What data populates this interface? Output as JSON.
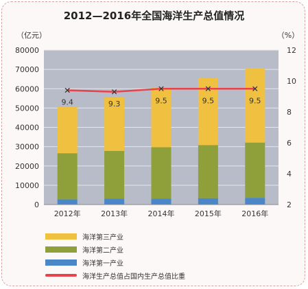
{
  "chart_data": {
    "type": "bar",
    "title": "2012—2016年全国海洋生产总值情况",
    "left_unit": "（亿元）",
    "right_unit": "（%）",
    "categories": [
      "2012年",
      "2013年",
      "2014年",
      "2015年",
      "2016年"
    ],
    "y_left": {
      "min": 0,
      "max": 80000,
      "ticks": [
        0,
        10000,
        20000,
        30000,
        40000,
        50000,
        60000,
        70000,
        80000
      ]
    },
    "y_right": {
      "min": 2,
      "max": 12,
      "ticks": [
        2,
        4,
        6,
        8,
        10,
        12
      ]
    },
    "stacked": true,
    "series": [
      {
        "name": "海洋第一产业",
        "type": "bar",
        "color": "#4a86c8",
        "values": [
          2700,
          3000,
          3100,
          3300,
          3500
        ]
      },
      {
        "name": "海洋第二产业",
        "type": "bar",
        "color": "#8fa03a",
        "values": [
          23900,
          24800,
          26600,
          27500,
          28600
        ]
      },
      {
        "name": "海洋第三产业",
        "type": "bar",
        "color": "#f0c040",
        "values": [
          24000,
          27700,
          30900,
          34700,
          38600
        ]
      },
      {
        "name": "海洋生产总值占国内生产总值比重",
        "type": "line",
        "color": "#e8424a",
        "axis": "right",
        "values": [
          9.4,
          9.3,
          9.5,
          9.5,
          9.5
        ]
      }
    ],
    "data_labels": [
      "9.4",
      "9.3",
      "9.5",
      "9.5",
      "9.5"
    ],
    "legend_order": [
      "海洋第三产业",
      "海洋第二产业",
      "海洋第一产业",
      "海洋生产总值占国内生产总值比重"
    ],
    "plot_background": "#b8bcc8",
    "grid": true
  }
}
